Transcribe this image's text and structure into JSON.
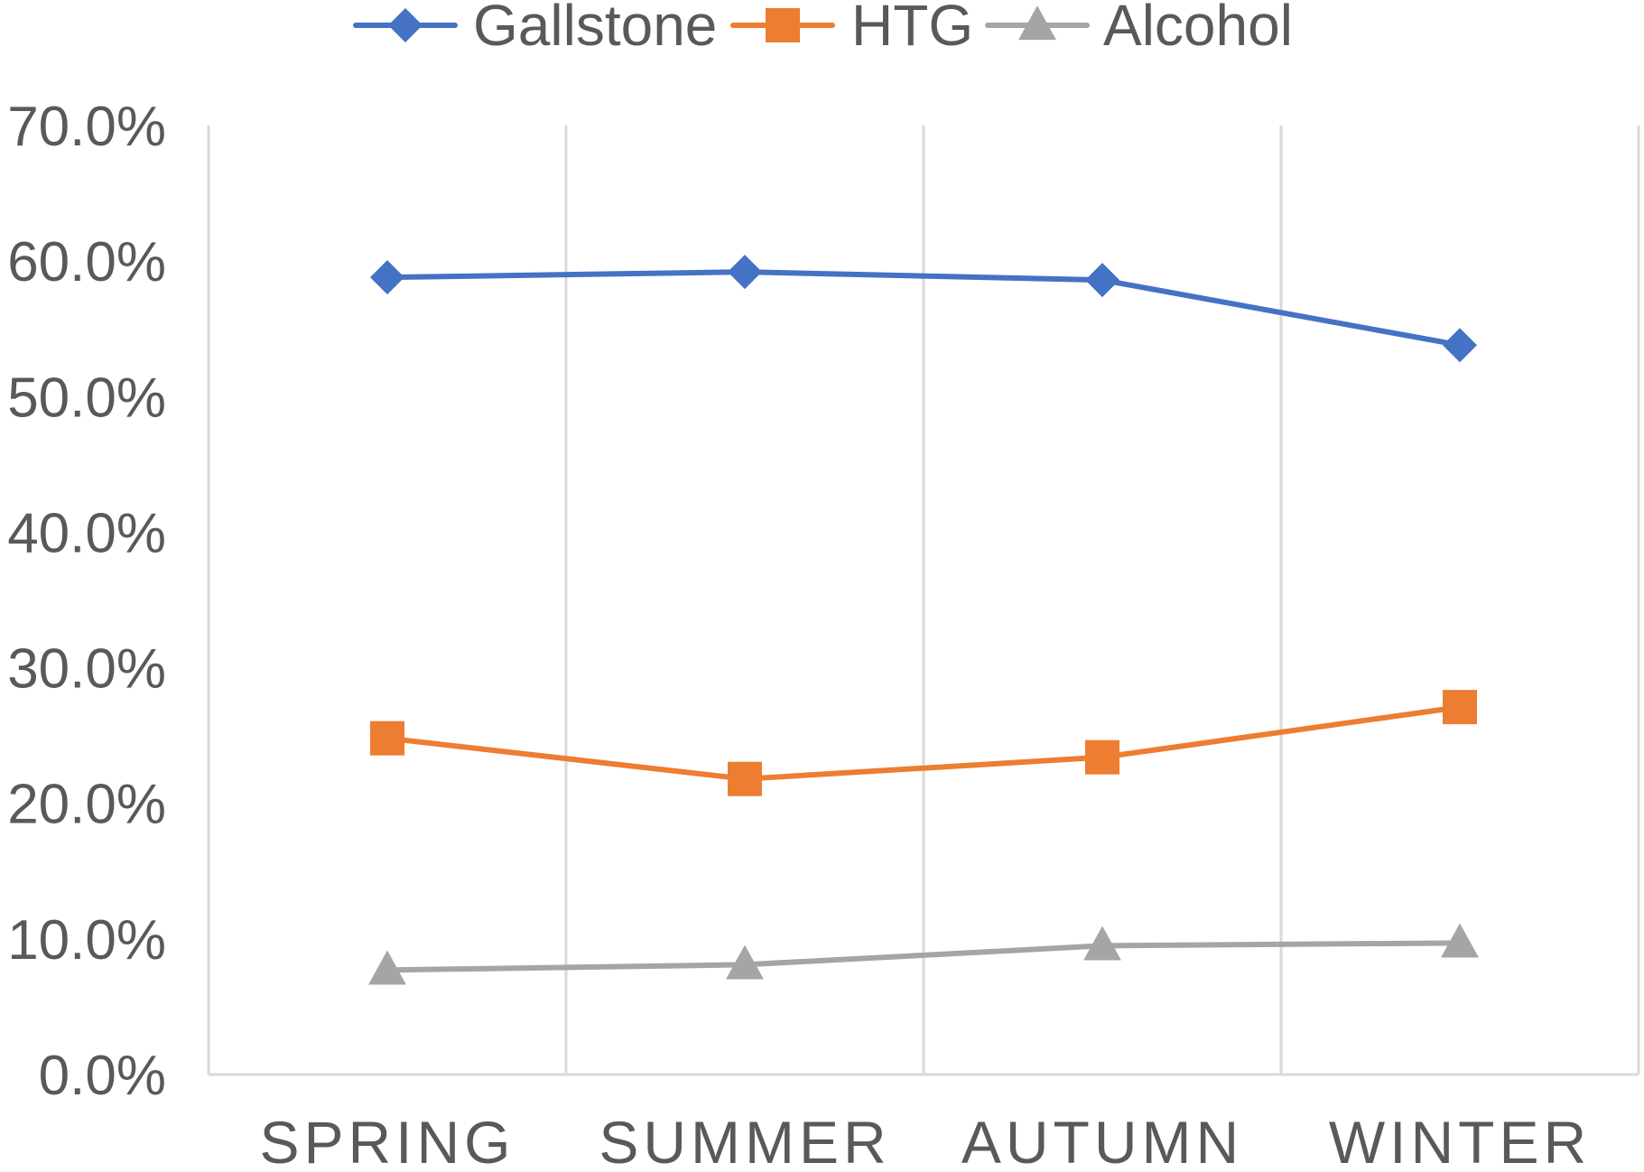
{
  "chart_data": {
    "type": "line",
    "categories": [
      "SPRING",
      "SUMMER",
      "AUTUMN",
      "WINTER"
    ],
    "series": [
      {
        "name": "Gallstone",
        "values": [
          58.8,
          59.2,
          58.6,
          53.8
        ],
        "color": "#4472C4",
        "marker": "diamond"
      },
      {
        "name": "HTG",
        "values": [
          24.8,
          21.8,
          23.4,
          27.1
        ],
        "color": "#ED7D31",
        "marker": "square"
      },
      {
        "name": "Alcohol",
        "values": [
          7.7,
          8.1,
          9.5,
          9.7
        ],
        "color": "#A5A5A5",
        "marker": "triangle"
      }
    ],
    "ylim": [
      0,
      70
    ],
    "yticks": [
      0,
      10,
      20,
      30,
      40,
      50,
      60,
      70
    ],
    "ytick_labels": [
      "0.0%",
      "10.0%",
      "20.0%",
      "30.0%",
      "40.0%",
      "50.0%",
      "60.0%",
      "70.0%"
    ],
    "vertical_gridlines": true,
    "horizontal_gridlines": false,
    "legend_position": "top-center",
    "title": "",
    "xlabel": "",
    "ylabel": ""
  }
}
